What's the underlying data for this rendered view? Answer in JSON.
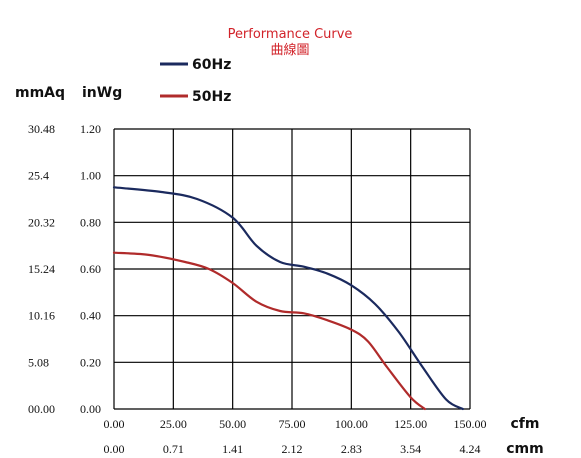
{
  "chart_data": {
    "type": "line",
    "title": "Performance Curve",
    "subtitle": "曲線圖",
    "y_units": [
      "mmAq",
      "inWg"
    ],
    "x_units": [
      "cfm",
      "cmm"
    ],
    "xlim": [
      0,
      150
    ],
    "ylim": [
      0,
      1.2
    ],
    "x_ticks_cfm": [
      "0.00",
      "25.00",
      "50.00",
      "75.00",
      "100.00",
      "125.00",
      "150.00"
    ],
    "x_ticks_cmm": [
      "0.00",
      "0.71",
      "1.41",
      "2.12",
      "2.83",
      "3.54",
      "4.24"
    ],
    "y_ticks_inwg": [
      "0.00",
      "0.20",
      "0.40",
      "0.60",
      "0.80",
      "1.00",
      "1.20"
    ],
    "y_ticks_mmaq": [
      "00.00",
      "5.08",
      "10.16",
      "15.24",
      "20.32",
      "25.4",
      "30.48"
    ],
    "grid": true,
    "legend_position": "top",
    "series": [
      {
        "name": "60Hz",
        "color": "#1b2a5e",
        "points": [
          [
            0,
            0.95
          ],
          [
            20,
            0.93
          ],
          [
            35,
            0.9
          ],
          [
            50,
            0.82
          ],
          [
            60,
            0.7
          ],
          [
            70,
            0.63
          ],
          [
            80,
            0.61
          ],
          [
            90,
            0.58
          ],
          [
            100,
            0.53
          ],
          [
            110,
            0.45
          ],
          [
            120,
            0.33
          ],
          [
            130,
            0.18
          ],
          [
            140,
            0.04
          ],
          [
            147,
            0.0
          ]
        ]
      },
      {
        "name": "50Hz",
        "color": "#b02b2b",
        "points": [
          [
            0,
            0.67
          ],
          [
            15,
            0.66
          ],
          [
            30,
            0.63
          ],
          [
            40,
            0.6
          ],
          [
            50,
            0.54
          ],
          [
            60,
            0.46
          ],
          [
            70,
            0.42
          ],
          [
            80,
            0.41
          ],
          [
            90,
            0.38
          ],
          [
            100,
            0.34
          ],
          [
            107,
            0.29
          ],
          [
            115,
            0.18
          ],
          [
            125,
            0.05
          ],
          [
            131,
            0.0
          ]
        ]
      }
    ]
  }
}
